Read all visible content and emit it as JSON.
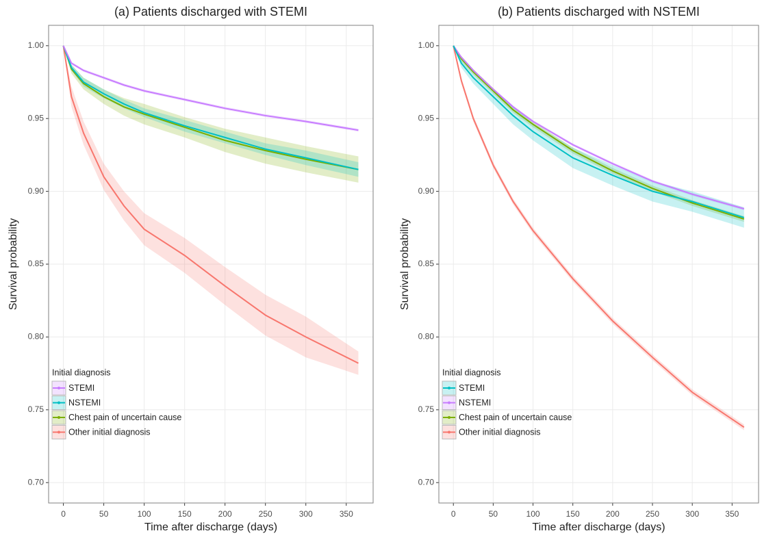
{
  "chart_data": [
    {
      "type": "line",
      "title": "(a) Patients discharged with STEMI",
      "x_label": "Time after discharge (days)",
      "y_label": "Survival probability",
      "x": [
        0,
        10,
        25,
        50,
        75,
        100,
        150,
        200,
        250,
        300,
        365
      ],
      "xlim": [
        -18.25,
        383.25
      ],
      "xticks": [
        0,
        50,
        100,
        150,
        200,
        250,
        300,
        350
      ],
      "ylim": [
        0.686,
        1.014
      ],
      "yticks": [
        {
          "value": 0.7,
          "label": "0.70"
        },
        0.75,
        {
          "value": 0.8,
          "label": "0.80"
        },
        0.85,
        {
          "value": 0.9,
          "label": "0.90"
        },
        0.95,
        {
          "value": 1,
          "label": "1.00"
        }
      ],
      "grid": true,
      "legend_title": "Initial diagnosis",
      "legend_position": "bottom-left",
      "series": [
        {
          "name": "STEMI",
          "color": "#C77CFF",
          "values": [
            1.0,
            0.988,
            0.983,
            0.978,
            0.973,
            0.969,
            0.963,
            0.957,
            0.952,
            0.948,
            0.942
          ],
          "lower": [
            1.0,
            0.987,
            0.982,
            0.977,
            0.972,
            0.968,
            0.962,
            0.956,
            0.951,
            0.947,
            0.941
          ],
          "upper": [
            1.0,
            0.989,
            0.984,
            0.979,
            0.974,
            0.97,
            0.964,
            0.958,
            0.953,
            0.949,
            0.943
          ]
        },
        {
          "name": "NSTEMI",
          "color": "#00BFC4",
          "values": [
            1.0,
            0.985,
            0.975,
            0.967,
            0.96,
            0.954,
            0.945,
            0.937,
            0.929,
            0.923,
            0.915
          ],
          "lower": [
            1.0,
            0.983,
            0.972,
            0.964,
            0.957,
            0.951,
            0.941,
            0.933,
            0.925,
            0.918,
            0.91
          ],
          "upper": [
            1.0,
            0.987,
            0.978,
            0.97,
            0.963,
            0.957,
            0.949,
            0.941,
            0.933,
            0.928,
            0.92
          ]
        },
        {
          "name": "Chest pain of uncertain cause",
          "color": "#7CAE00",
          "values": [
            1.0,
            0.984,
            0.974,
            0.965,
            0.958,
            0.953,
            0.944,
            0.935,
            0.928,
            0.922,
            0.915
          ],
          "lower": [
            1.0,
            0.981,
            0.97,
            0.96,
            0.952,
            0.946,
            0.937,
            0.927,
            0.919,
            0.913,
            0.906
          ],
          "upper": [
            1.0,
            0.987,
            0.978,
            0.97,
            0.964,
            0.96,
            0.951,
            0.943,
            0.937,
            0.931,
            0.924
          ]
        },
        {
          "name": "Other initial diagnosis",
          "color": "#F8766D",
          "values": [
            1.0,
            0.965,
            0.94,
            0.91,
            0.89,
            0.874,
            0.856,
            0.835,
            0.815,
            0.8,
            0.782
          ],
          "lower": [
            1.0,
            0.958,
            0.932,
            0.901,
            0.88,
            0.863,
            0.844,
            0.822,
            0.801,
            0.786,
            0.774
          ],
          "upper": [
            1.0,
            0.972,
            0.948,
            0.919,
            0.9,
            0.885,
            0.868,
            0.848,
            0.829,
            0.814,
            0.79
          ]
        }
      ]
    },
    {
      "type": "line",
      "title": "(b) Patients discharged with NSTEMI",
      "x_label": "Time after discharge (days)",
      "y_label": "Survival probability",
      "x": [
        0,
        10,
        25,
        50,
        75,
        100,
        150,
        200,
        250,
        300,
        365
      ],
      "xlim": [
        -18.25,
        383.25
      ],
      "xticks": [
        0,
        50,
        100,
        150,
        200,
        250,
        300,
        350
      ],
      "ylim": [
        0.686,
        1.014
      ],
      "yticks": [
        {
          "value": 0.7,
          "label": "0.70"
        },
        0.75,
        {
          "value": 0.8,
          "label": "0.80"
        },
        0.85,
        {
          "value": 0.9,
          "label": "0.90"
        },
        0.95,
        {
          "value": 1,
          "label": "1.00"
        }
      ],
      "grid": true,
      "legend_title": "Initial diagnosis",
      "legend_position": "bottom-left",
      "series": [
        {
          "name": "STEMI",
          "color": "#00BFC4",
          "values": [
            1.0,
            0.988,
            0.978,
            0.965,
            0.952,
            0.941,
            0.923,
            0.911,
            0.9,
            0.893,
            0.882
          ],
          "lower": [
            1.0,
            0.985,
            0.974,
            0.96,
            0.946,
            0.935,
            0.916,
            0.904,
            0.893,
            0.886,
            0.875
          ],
          "upper": [
            1.0,
            0.991,
            0.982,
            0.97,
            0.958,
            0.947,
            0.93,
            0.918,
            0.907,
            0.9,
            0.889
          ]
        },
        {
          "name": "NSTEMI",
          "color": "#C77CFF",
          "values": [
            1.0,
            0.992,
            0.983,
            0.97,
            0.958,
            0.948,
            0.932,
            0.919,
            0.907,
            0.898,
            0.888
          ],
          "lower": [
            1.0,
            0.991,
            0.982,
            0.969,
            0.957,
            0.947,
            0.931,
            0.918,
            0.906,
            0.897,
            0.887
          ],
          "upper": [
            1.0,
            0.993,
            0.984,
            0.971,
            0.959,
            0.949,
            0.933,
            0.92,
            0.908,
            0.899,
            0.889
          ]
        },
        {
          "name": "Chest pain of uncertain cause",
          "color": "#7CAE00",
          "values": [
            1.0,
            0.991,
            0.982,
            0.969,
            0.956,
            0.946,
            0.928,
            0.914,
            0.902,
            0.892,
            0.881
          ],
          "lower": [
            1.0,
            0.989,
            0.98,
            0.967,
            0.954,
            0.944,
            0.926,
            0.912,
            0.9,
            0.89,
            0.879
          ],
          "upper": [
            1.0,
            0.993,
            0.984,
            0.971,
            0.958,
            0.948,
            0.93,
            0.916,
            0.904,
            0.894,
            0.883
          ]
        },
        {
          "name": "Other initial diagnosis",
          "color": "#F8766D",
          "values": [
            1.0,
            0.976,
            0.95,
            0.918,
            0.893,
            0.873,
            0.84,
            0.811,
            0.786,
            0.762,
            0.738
          ],
          "lower": [
            1.0,
            0.974,
            0.948,
            0.916,
            0.891,
            0.871,
            0.838,
            0.809,
            0.784,
            0.76,
            0.736
          ],
          "upper": [
            1.0,
            0.978,
            0.952,
            0.92,
            0.895,
            0.875,
            0.842,
            0.813,
            0.788,
            0.764,
            0.74
          ]
        }
      ]
    }
  ]
}
